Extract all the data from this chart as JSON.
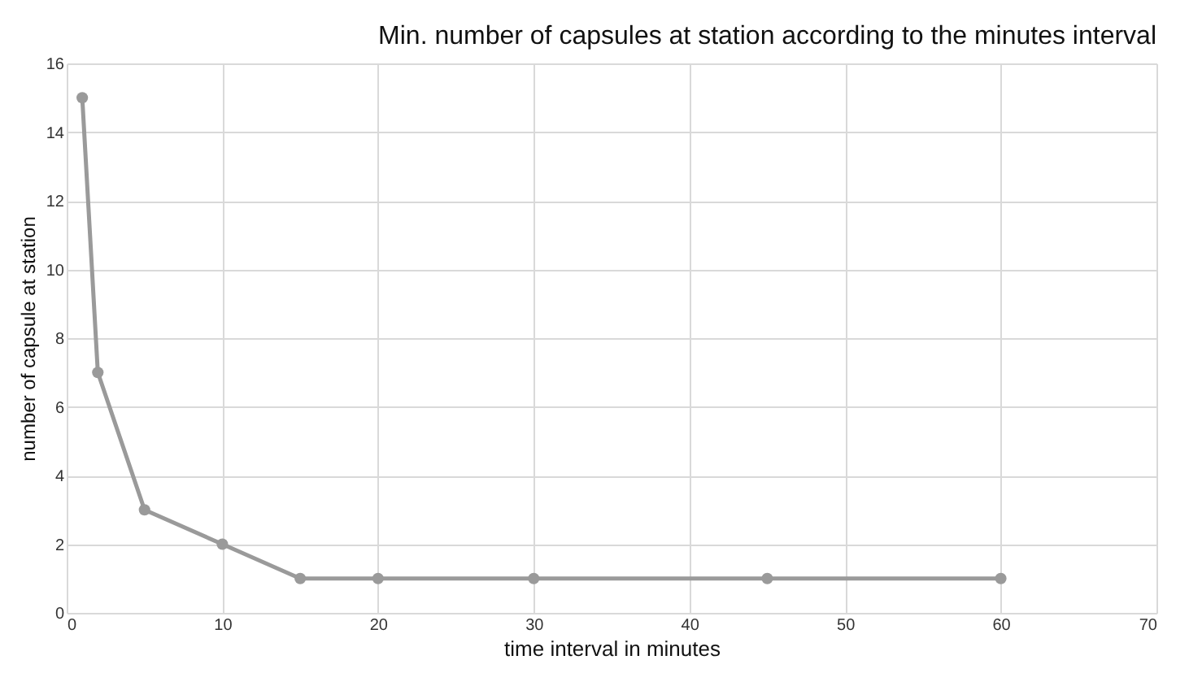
{
  "chart_data": {
    "type": "line",
    "title": "Min. number of capsules at station according to the minutes interval",
    "xlabel": "time interval in minutes",
    "ylabel": "number of capsule at station",
    "x": [
      1,
      2,
      5,
      10,
      15,
      20,
      30,
      45,
      60
    ],
    "series": [
      {
        "color": "#9a9a9a",
        "values": [
          15,
          7,
          3,
          2,
          1,
          1,
          1,
          1,
          1
        ]
      }
    ],
    "xlim": [
      0,
      70
    ],
    "xticks": [
      0,
      10,
      20,
      30,
      40,
      50,
      60,
      70
    ],
    "ylim": [
      0,
      16
    ],
    "yticks": [
      0,
      2,
      4,
      6,
      8,
      10,
      12,
      14,
      16
    ],
    "grid": true,
    "marker": "circle",
    "line_style": "solid"
  }
}
